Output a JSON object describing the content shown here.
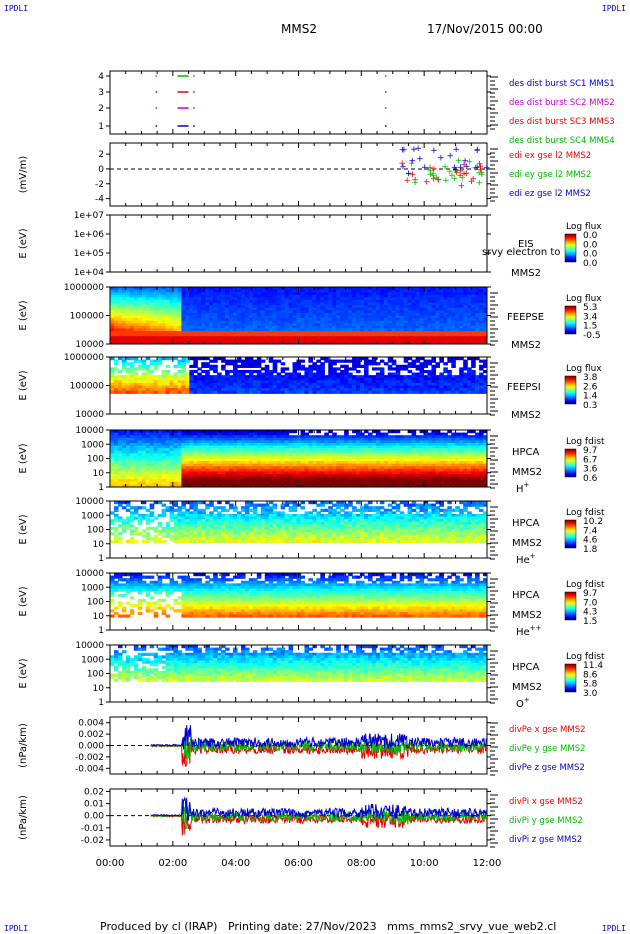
{
  "corners": {
    "tl": "IPDLI",
    "tr": "IPDLI",
    "bl": "IPDLI",
    "br": "IPDLI"
  },
  "header": {
    "spacecraft": "MMS2",
    "date": "17/Nov/2015 00:00"
  },
  "footer": {
    "text": "Produced by cl (IRAP)   Printing date: 27/Nov/2023   mms_mms2_srvy_vue_web2.cl"
  },
  "time_axis": {
    "ticks": [
      "00:00",
      "02:00",
      "04:00",
      "06:00",
      "08:00",
      "10:00",
      "12:00"
    ],
    "range_hours": [
      0,
      12
    ]
  },
  "colors": {
    "mms1": "#0000cc",
    "mms2": "#cc00cc",
    "mms3": "#ee0000",
    "mms4": "#00bb00",
    "x": "#ee0000",
    "y": "#00bb00",
    "z": "#0000cc"
  },
  "chart_data": [
    {
      "type": "scatter",
      "panel": "burst",
      "yticks": [
        "1",
        "2",
        "3",
        "4"
      ],
      "legend": [
        "des dist burst SC1 MMS1",
        "des dist burst SC2 MMS2",
        "des dist burst SC3 MMS3",
        "des dist burst SC4 MMS4"
      ],
      "intervals_hours": [
        [
          1.45,
          1.5
        ],
        [
          2.15,
          2.5
        ],
        [
          2.65,
          2.7
        ],
        [
          8.75,
          8.8
        ]
      ]
    },
    {
      "type": "line",
      "panel": "edi",
      "ylabel": "(mV/m)",
      "yticks": [
        "2",
        "0",
        "-2",
        "-4"
      ],
      "ylim": [
        -5,
        3.5
      ],
      "legend": [
        "edi ex gse l2 MMS2",
        "edi ey gse l2 MMS2",
        "edi ez gse l2 MMS2"
      ],
      "data_interval_hours": [
        9.3,
        12
      ]
    },
    {
      "type": "heatmap",
      "panel": "eis",
      "ylabel": "E (eV)",
      "yticks": [
        "1e+07",
        "1e+06",
        "1e+05",
        "1e+04"
      ],
      "labels": [
        "EIS",
        "MMS2"
      ],
      "overlay": "srvy electron to",
      "colorbar": {
        "title": "Log flux",
        "ticks": [
          "0.0",
          "0.0",
          "0.0",
          "0.0"
        ]
      }
    },
    {
      "type": "heatmap",
      "panel": "feepse",
      "ylabel": "E (eV)",
      "yticks": [
        "1000000",
        "100000",
        "10000"
      ],
      "labels": [
        "FEEPSE",
        "MMS2"
      ],
      "colorbar": {
        "title": "Log flux",
        "ticks": [
          "5.3",
          "3.4",
          "1.5",
          "-0.5"
        ]
      }
    },
    {
      "type": "heatmap",
      "panel": "feepsi",
      "ylabel": "E (eV)",
      "yticks": [
        "1000000",
        "100000",
        "10000"
      ],
      "labels": [
        "FEEPSI",
        "MMS2"
      ],
      "colorbar": {
        "title": "Log flux",
        "ticks": [
          "3.8",
          "2.6",
          "1.4",
          "0.3"
        ]
      }
    },
    {
      "type": "heatmap",
      "panel": "hpca_h",
      "ylabel": "E (eV)",
      "yticks": [
        "10000",
        "1000",
        "100",
        "10",
        "1"
      ],
      "labels": [
        "HPCA",
        "MMS2"
      ],
      "species": "H",
      "species_sup": "+",
      "colorbar": {
        "title": "Log fdist",
        "ticks": [
          "9.7",
          "6.7",
          "3.6",
          "0.6"
        ]
      }
    },
    {
      "type": "heatmap",
      "panel": "hpca_he",
      "ylabel": "E (eV)",
      "yticks": [
        "10000",
        "1000",
        "100",
        "10",
        "1"
      ],
      "labels": [
        "HPCA",
        "MMS2"
      ],
      "species": "He",
      "species_sup": "+",
      "colorbar": {
        "title": "Log fdist",
        "ticks": [
          "10.2",
          "7.4",
          "4.6",
          "1.8"
        ]
      }
    },
    {
      "type": "heatmap",
      "panel": "hpca_hepp",
      "ylabel": "E (eV)",
      "yticks": [
        "10000",
        "1000",
        "100",
        "10",
        "1"
      ],
      "labels": [
        "HPCA",
        "MMS2"
      ],
      "species": "He",
      "species_sup": "++",
      "colorbar": {
        "title": "Log fdist",
        "ticks": [
          "9.7",
          "7.0",
          "4.3",
          "1.5"
        ]
      }
    },
    {
      "type": "heatmap",
      "panel": "hpca_o",
      "ylabel": "E (eV)",
      "yticks": [
        "10000",
        "1000",
        "100",
        "10",
        "1"
      ],
      "labels": [
        "HPCA",
        "MMS2"
      ],
      "species": "O",
      "species_sup": "+",
      "colorbar": {
        "title": "Log fdist",
        "ticks": [
          "11.4",
          "8.6",
          "5.8",
          "3.0"
        ]
      }
    },
    {
      "type": "line",
      "panel": "divpe",
      "ylabel": "(nPa/km)",
      "yticks": [
        "0.004",
        "0.002",
        "0.000",
        "-0.002",
        "-0.004"
      ],
      "ylim": [
        -0.005,
        0.005
      ],
      "legend": [
        "divPe x gse MMS2",
        "divPe y gse MMS2",
        "divPe z gse MMS2"
      ]
    },
    {
      "type": "line",
      "panel": "divpi",
      "ylabel": "(nPa/km)",
      "yticks": [
        "0.02",
        "0.01",
        "0.00",
        "-0.01",
        "-0.02"
      ],
      "ylim": [
        -0.025,
        0.022
      ],
      "legend": [
        "divPi x gse MMS2",
        "divPi y gse MMS2",
        "divPi z gse MMS2"
      ]
    }
  ]
}
